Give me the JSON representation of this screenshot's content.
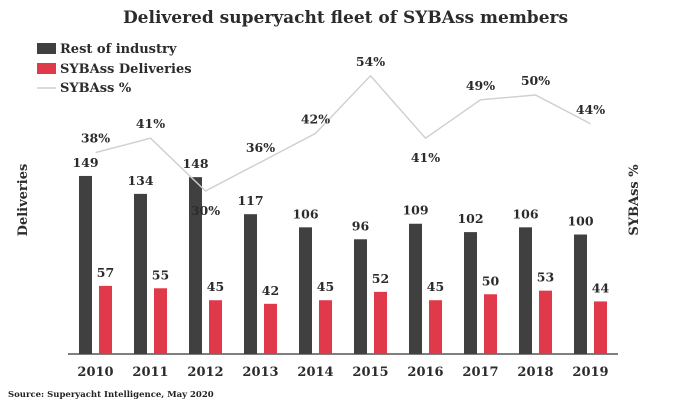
{
  "chart_data": {
    "type": "bar",
    "title": "Delivered superyacht fleet of SYBAss members",
    "source": "Source: Superyacht Intelligence, May 2020",
    "categories": [
      "2010",
      "2011",
      "2012",
      "2013",
      "2014",
      "2015",
      "2016",
      "2017",
      "2018",
      "2019"
    ],
    "series": [
      {
        "name": "Rest of industry",
        "kind": "bar",
        "values": [
          149,
          134,
          148,
          117,
          106,
          96,
          109,
          102,
          106,
          100
        ]
      },
      {
        "name": "SYBAss Deliveries",
        "kind": "bar",
        "values": [
          57,
          55,
          45,
          42,
          45,
          52,
          45,
          50,
          53,
          44
        ]
      },
      {
        "name": "SYBAss %",
        "kind": "line",
        "axis": "right",
        "values": [
          38,
          41,
          30,
          36,
          42,
          54,
          41,
          49,
          50,
          44
        ],
        "value_labels": [
          "38%",
          "41%",
          "30%",
          "36%",
          "42%",
          "54%",
          "41%",
          "49%",
          "50%",
          "44%"
        ]
      }
    ],
    "ylabel": "Deliveries",
    "y2label": "SYBAss %",
    "ylim": [
      0,
      160
    ],
    "y2lim": [
      0,
      60
    ],
    "grid": false,
    "legend_position": "top-left",
    "colors": {
      "rest": "#404040",
      "sybass": "#e03a4a",
      "line": "#cfcfcf",
      "axis": "#333333"
    }
  }
}
